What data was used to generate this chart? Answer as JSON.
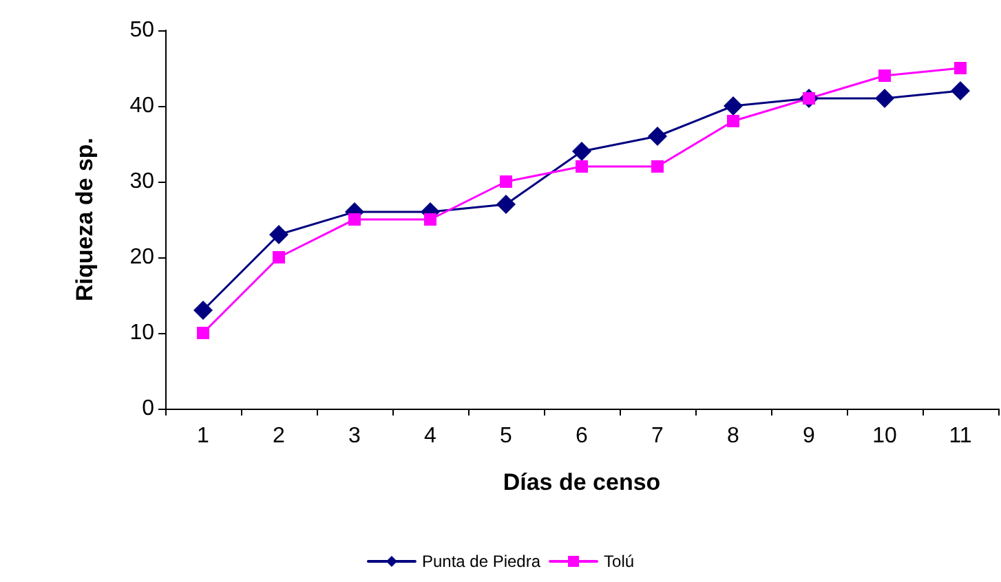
{
  "chart_data": {
    "type": "line",
    "xlabel": "Días de censo",
    "ylabel": "Riqueza de sp.",
    "categories": [
      "1",
      "2",
      "3",
      "4",
      "5",
      "6",
      "7",
      "8",
      "9",
      "10",
      "11"
    ],
    "series": [
      {
        "name": "Punta de Piedra",
        "color": "#000080",
        "marker": "diamond",
        "values": [
          13,
          23,
          26,
          26,
          27,
          34,
          36,
          40,
          41,
          41,
          42
        ]
      },
      {
        "name": "Tolú",
        "color": "#ff00ff",
        "marker": "square",
        "values": [
          10,
          20,
          25,
          25,
          30,
          32,
          32,
          38,
          41,
          44,
          45
        ]
      }
    ],
    "ylim": [
      0,
      50
    ],
    "yticks": [
      0,
      10,
      20,
      30,
      40,
      50
    ],
    "grid": false,
    "legend": "bottom",
    "line_style": "solid"
  }
}
